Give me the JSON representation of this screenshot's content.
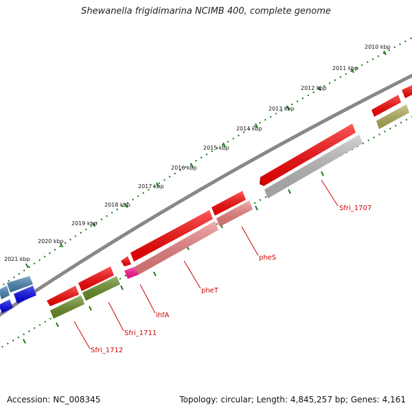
{
  "title": "Shewanella frigidimarina NCIMB 400, complete genome",
  "footer": {
    "accession": "Accession: NC_008345",
    "summary": "Topology: circular; Length: 4,845,257 bp; Genes: 4,161"
  },
  "ruler_labels": [
    "2010 kbp",
    "2011 kbp",
    "2012 kbp",
    "2013 kbp",
    "2014 kbp",
    "2015 kbp",
    "2016 kbp",
    "2017 kbp",
    "2018 kbp",
    "2019 kbp",
    "2020 kbp",
    "2021 kbp"
  ],
  "gene_labels": [
    "Sfri_1707",
    "pheS",
    "pheT",
    "ihfA",
    "Sfri_1711",
    "Sfri_1712"
  ],
  "colors": {
    "backbone": "#7a7a7a",
    "ruler": "#1e7a1e",
    "label_line": "#cc0000",
    "gene_red": "#ff0000",
    "gene_pink": "#f08080",
    "gene_magenta": "#ff1493",
    "gene_gray": "#b8b8b8",
    "gene_olive": "#6b8e23",
    "gene_khaki": "#b5b05a",
    "gene_blue": "#0000ee",
    "gene_steelblue": "#4682b4"
  }
}
